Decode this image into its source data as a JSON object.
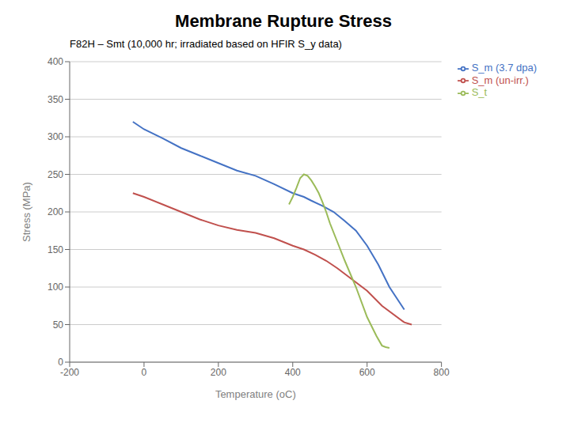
{
  "chart_data": {
    "type": "line",
    "title": "Membrane Rupture Stress",
    "subtitle": "F82H – Smt (10,000 hr; irradiated based on HFIR S_y data)",
    "xlabel": "Temperature (oC)",
    "ylabel": "Stress (MPa)",
    "xlim": [
      -200,
      800
    ],
    "ylim": [
      0,
      400
    ],
    "xticks": [
      -200,
      0,
      200,
      400,
      600,
      800
    ],
    "yticks": [
      0,
      50,
      100,
      150,
      200,
      250,
      300,
      350,
      400
    ],
    "grid": true,
    "legend": "right",
    "series": [
      {
        "name": "S_m (3.7 dpa)",
        "color": "#4472C4",
        "x": [
          -30,
          0,
          50,
          100,
          150,
          200,
          250,
          300,
          350,
          400,
          430,
          450,
          480,
          510,
          540,
          570,
          600,
          630,
          660,
          700
        ],
        "values": [
          320,
          310,
          298,
          285,
          275,
          265,
          255,
          248,
          237,
          225,
          220,
          215,
          208,
          200,
          188,
          175,
          155,
          130,
          100,
          70
        ]
      },
      {
        "name": "S_m (un-irr.)",
        "color": "#C0504D",
        "x": [
          -30,
          0,
          50,
          100,
          150,
          200,
          250,
          300,
          350,
          400,
          430,
          460,
          490,
          520,
          560,
          600,
          640,
          700,
          720
        ],
        "values": [
          225,
          220,
          210,
          200,
          190,
          182,
          176,
          172,
          165,
          155,
          150,
          143,
          135,
          125,
          110,
          95,
          75,
          53,
          50
        ]
      },
      {
        "name": "S_t",
        "color": "#9BBB59",
        "x": [
          390,
          400,
          410,
          420,
          430,
          440,
          450,
          460,
          470,
          480,
          490,
          500,
          520,
          540,
          570,
          600,
          625,
          640,
          650,
          660
        ],
        "values": [
          210,
          220,
          232,
          245,
          250,
          248,
          242,
          234,
          225,
          213,
          200,
          185,
          160,
          135,
          100,
          60,
          35,
          22,
          20,
          19
        ]
      }
    ]
  }
}
